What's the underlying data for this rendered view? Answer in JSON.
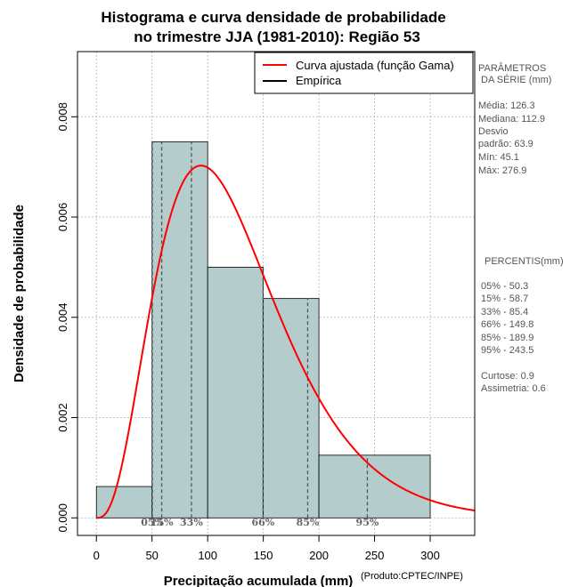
{
  "chart_data": {
    "type": "bar",
    "title_line1": "Histograma e curva densidade de probabilidade",
    "title_line2": "no trimestre JJA (1981-2010): Região 53",
    "xlabel": "Precipitação acumulada (mm)",
    "ylabel": "Densidade de probabilidade",
    "credit": "(Produto:CPTEC/INPE)",
    "xlim": [
      -17,
      340
    ],
    "ylim": [
      -0.00035,
      0.0093
    ],
    "x_ticks": [
      0,
      50,
      100,
      150,
      200,
      250,
      300
    ],
    "x_tick_labels": [
      "0",
      "50",
      "100",
      "150",
      "200",
      "250",
      "300"
    ],
    "y_ticks": [
      0,
      0.002,
      0.004,
      0.006,
      0.008
    ],
    "y_tick_labels": [
      "0.000",
      "0.002",
      "0.004",
      "0.006",
      "0.008"
    ],
    "grid": true,
    "bins": [
      {
        "x0": 0,
        "x1": 50,
        "density": 0.000625
      },
      {
        "x0": 50,
        "x1": 100,
        "density": 0.0075
      },
      {
        "x0": 100,
        "x1": 150,
        "density": 0.005
      },
      {
        "x0": 150,
        "x1": 200,
        "density": 0.004375
      },
      {
        "x0": 200,
        "x1": 300,
        "density": 0.00125
      }
    ],
    "bar_color": "#b4cccc",
    "curve": {
      "name": "Curva ajustada (função Gama)",
      "distribution": "gamma",
      "shape": 3.9,
      "scale": 32.4,
      "color": "#ff0000"
    },
    "legend": [
      {
        "label": "Curva ajustada (função Gama)",
        "color": "#ff0000"
      },
      {
        "label": "Empírica",
        "color": "#000000"
      }
    ],
    "legend_position": "top-right",
    "percentiles": [
      {
        "label": "05%",
        "value": 50.3
      },
      {
        "label": "15%",
        "value": 58.7
      },
      {
        "label": "33%",
        "value": 85.4
      },
      {
        "label": "66%",
        "value": 149.8
      },
      {
        "label": "85%",
        "value": 189.9
      },
      {
        "label": "95%",
        "value": 243.5
      }
    ]
  },
  "side_panel": {
    "params_title_1": "PARÂMETROS",
    "params_title_2": "DA SÉRIE (mm)",
    "media": "Média:  126.3",
    "mediana": "Mediana:  112.9",
    "desvio_1": "Desvio",
    "desvio_2": "padrão:  63.9",
    "min": "Mín:  45.1",
    "max": "Máx:  276.9",
    "percentis_title": "PERCENTIS(mm)",
    "p05": "05% -  50.3",
    "p15": "15% -  58.7",
    "p33": "33% -  85.4",
    "p66": "66% -  149.8",
    "p85": "85% -  189.9",
    "p95": "95% -  243.5",
    "curtose": "Curtose:  0.9",
    "assimetria": "Assimetria:  0.6"
  }
}
